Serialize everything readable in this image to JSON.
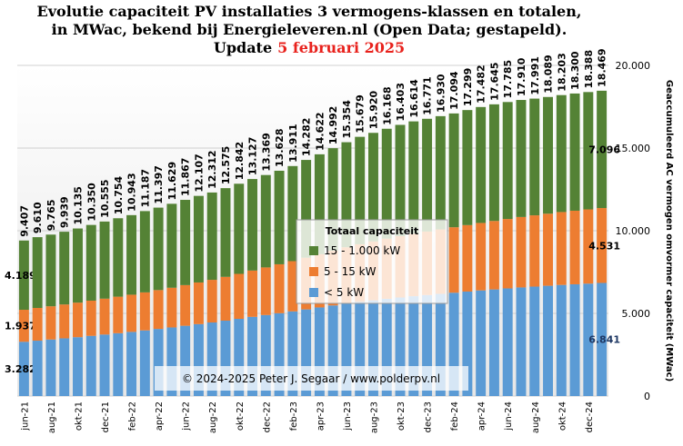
{
  "chart_data": {
    "type": "stacked_bar",
    "title": [
      "Evolutie  capaciteit  PV installaties  3 vermogens-klassen  en totalen,",
      "in MWac, bekend bij Energieleveren.nl (Open Data; gestapeld)."
    ],
    "update_label": "Update",
    "update_date": "5 februari 2025",
    "y_axis_label": "Geaccumuleerd AC vermogen omvormer capaciteit (MWac)",
    "copyright": "© 2024-2025  Peter J. Segaar / www.polderpv.nl",
    "legend_title": "Totaal capaciteit",
    "ylim": [
      0,
      20000
    ],
    "yticks": [
      0,
      {
        "value": 5000,
        "label": "5.000"
      },
      {
        "value": 10000,
        "label": "10.000"
      },
      {
        "value": 15000,
        "label": "15.000"
      },
      {
        "value": 20000,
        "label": "20.000"
      }
    ],
    "grid": true,
    "categories": [
      "jun-21",
      null,
      "aug-21",
      null,
      "okt-21",
      null,
      "dec-21",
      null,
      "feb-22",
      null,
      "apr-22",
      null,
      "jun-22",
      null,
      "aug-22",
      null,
      "okt-22",
      null,
      "dec-22",
      null,
      "feb-23",
      null,
      "apr-23",
      null,
      "jun-23",
      null,
      "aug-23",
      null,
      "okt-23",
      null,
      "dec-23",
      null,
      "feb-24",
      null,
      "apr-24",
      null,
      "jun-24",
      null,
      "aug-24",
      null,
      "okt-24",
      null,
      "dec-24",
      null
    ],
    "series": [
      {
        "name": "< 5 kW",
        "color": "#5b9bd5",
        "values": [
          3282,
          3350,
          3420,
          3490,
          3560,
          3640,
          3720,
          3800,
          3880,
          3970,
          4060,
          4150,
          4250,
          4350,
          4450,
          4560,
          4670,
          4790,
          4900,
          5010,
          5120,
          5240,
          5360,
          5480,
          5600,
          5700,
          5790,
          5880,
          5960,
          6040,
          6110,
          6180,
          6250,
          6320,
          6390,
          6450,
          6510,
          6570,
          6620,
          6670,
          6720,
          6760,
          6800,
          6841
        ],
        "value_labels": [
          "3.282",
          null,
          null,
          null,
          null,
          null,
          null,
          null,
          null,
          null,
          null,
          null,
          null,
          null,
          null,
          null,
          null,
          null,
          null,
          null,
          null,
          null,
          null,
          null,
          null,
          null,
          null,
          null,
          null,
          null,
          null,
          null,
          null,
          null,
          null,
          null,
          null,
          null,
          null,
          null,
          null,
          null,
          null,
          "6.841"
        ]
      },
      {
        "name": "5 - 15 kW",
        "color": "#ed7d31",
        "values": [
          1937,
          1980,
          2010,
          2050,
          2090,
          2130,
          2170,
          2210,
          2250,
          2300,
          2350,
          2400,
          2460,
          2520,
          2580,
          2650,
          2720,
          2800,
          2880,
          2960,
          3040,
          3130,
          3220,
          3310,
          3400,
          3480,
          3560,
          3640,
          3710,
          3780,
          3840,
          3900,
          3960,
          4020,
          4080,
          4140,
          4200,
          4260,
          4310,
          4360,
          4410,
          4450,
          4490,
          4531
        ],
        "value_labels": [
          "1.937",
          null,
          null,
          null,
          null,
          null,
          null,
          null,
          null,
          null,
          null,
          null,
          null,
          null,
          null,
          null,
          null,
          null,
          null,
          null,
          null,
          null,
          null,
          null,
          null,
          null,
          null,
          null,
          null,
          null,
          null,
          null,
          null,
          null,
          null,
          null,
          null,
          null,
          null,
          null,
          null,
          null,
          null,
          "4.531"
        ]
      },
      {
        "name": "15 - 1.000 kW",
        "color": "#548235",
        "values": [
          4189,
          4280,
          4335,
          4399,
          4485,
          4580,
          4665,
          4744,
          4813,
          4917,
          4987,
          5079,
          5157,
          5237,
          5282,
          5365,
          5452,
          5537,
          5589,
          5658,
          5751,
          5912,
          6042,
          6202,
          6354,
          6499,
          6570,
          6648,
          6733,
          6794,
          6821,
          6850,
          6884,
          6959,
          7012,
          7055,
          7075,
          7080,
          7061,
          7059,
          7073,
          7090,
          7098,
          7096
        ],
        "value_labels": [
          "4.189",
          null,
          null,
          null,
          null,
          null,
          null,
          null,
          null,
          null,
          null,
          null,
          null,
          null,
          null,
          null,
          null,
          null,
          null,
          null,
          null,
          null,
          null,
          null,
          null,
          null,
          null,
          null,
          null,
          null,
          null,
          null,
          null,
          null,
          null,
          null,
          null,
          null,
          null,
          null,
          null,
          null,
          null,
          "7.096"
        ]
      }
    ],
    "totals": {
      "values": [
        9407,
        9610,
        9765,
        9939,
        10135,
        10350,
        10555,
        10754,
        10943,
        11187,
        11397,
        11629,
        11867,
        12107,
        12312,
        12575,
        12842,
        13127,
        13369,
        13628,
        13911,
        14282,
        14622,
        14992,
        15354,
        15679,
        15920,
        16168,
        16403,
        16614,
        16771,
        16930,
        17094,
        17299,
        17482,
        17645,
        17785,
        17910,
        17991,
        18089,
        18203,
        18300,
        18388,
        18469
      ],
      "value_labels": [
        "9.407",
        "9.610",
        "9.765",
        "9.939",
        "10.135",
        "10.350",
        "10.555",
        "10.754",
        "10.943",
        "11.187",
        "11.397",
        "11.629",
        "11.867",
        "12.107",
        "12.312",
        "12.575",
        "12.842",
        "13.127",
        "13.369",
        "13.628",
        "13.911",
        "14.282",
        "14.622",
        "14.992",
        "15.354",
        "15.679",
        "15.920",
        "16.168",
        "16.403",
        "16.614",
        "16.771",
        "16.930",
        "17.094",
        "17.299",
        "17.482",
        "17.645",
        "17.785",
        "17.910",
        "17.991",
        "18.089",
        "18.203",
        "18.300",
        "18.388",
        "18.469"
      ]
    }
  }
}
